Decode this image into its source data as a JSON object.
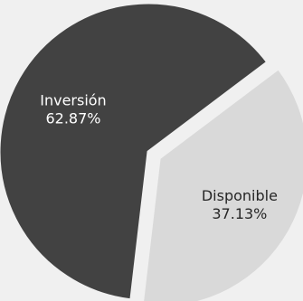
{
  "chart_data": {
    "type": "pie",
    "slices": [
      {
        "label": "Inversión",
        "value": 62.87,
        "value_label": "62.87%",
        "color": "#424242",
        "text_color": "#ffffff"
      },
      {
        "label": "Disponible",
        "value": 37.13,
        "value_label": "37.13%",
        "color": "#d9d9d9",
        "text_color": "#262626",
        "exploded": true
      }
    ],
    "start_angle_deg": 37,
    "direction": "counterclockwise"
  },
  "colors": {
    "background": "#f0f0f0"
  }
}
